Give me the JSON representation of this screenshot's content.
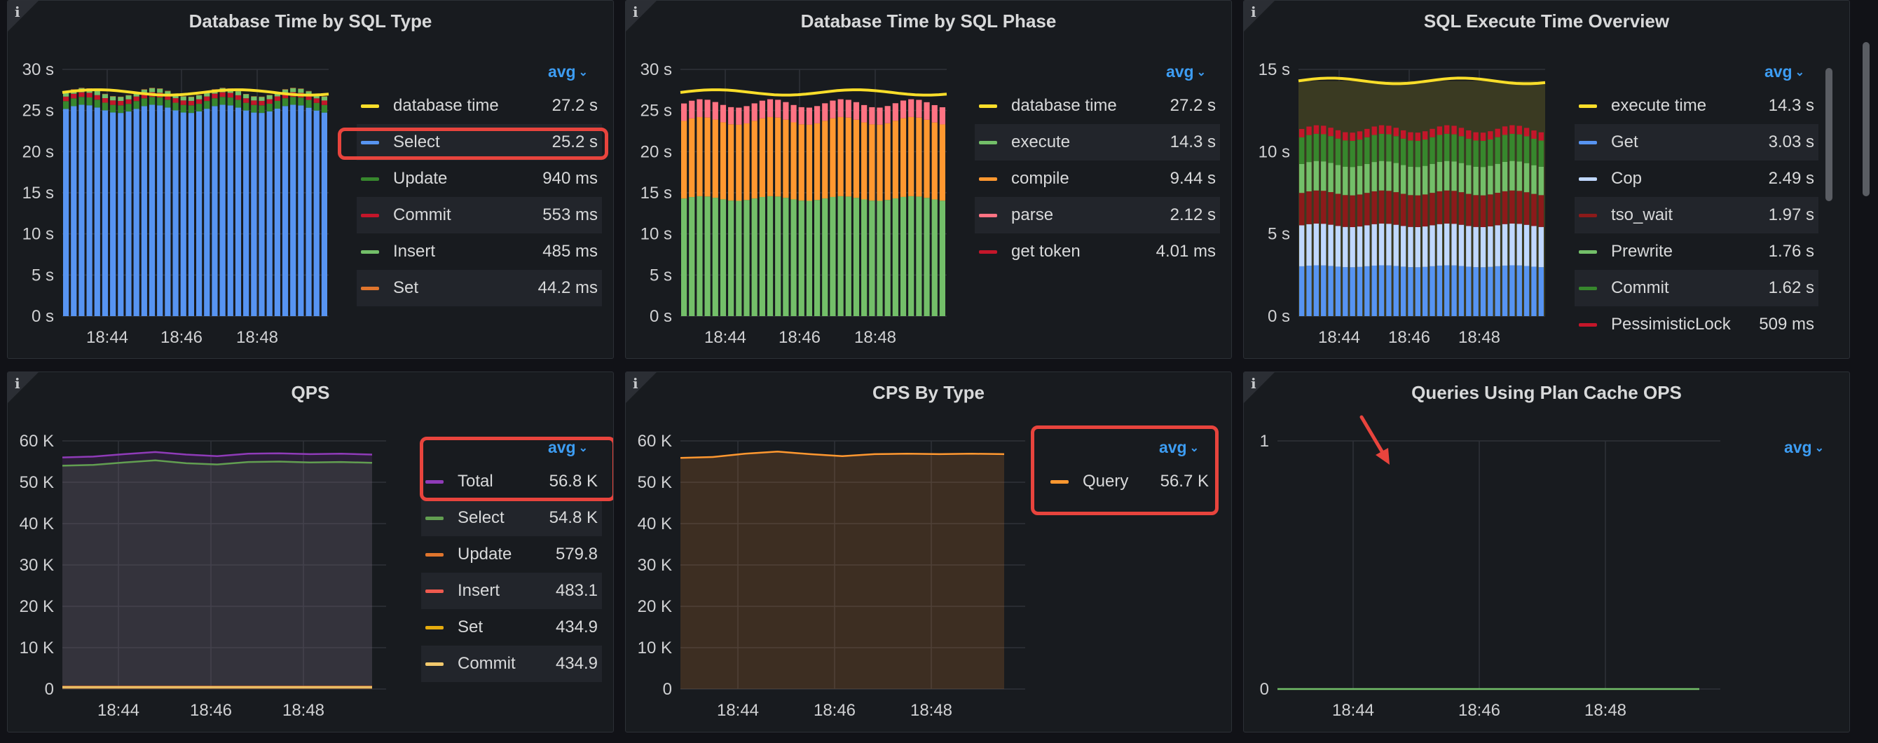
{
  "panels": {
    "p1": {
      "title": "Database Time by SQL Type",
      "avg_label": "avg",
      "legend": [
        {
          "name": "database time",
          "value": "27.2 s",
          "color": "#fade2a"
        },
        {
          "name": "Select",
          "value": "25.2 s",
          "color": "#5794f2"
        },
        {
          "name": "Update",
          "value": "940 ms",
          "color": "#37872d"
        },
        {
          "name": "Commit",
          "value": "553 ms",
          "color": "#c4162a"
        },
        {
          "name": "Insert",
          "value": "485 ms",
          "color": "#73bf69"
        },
        {
          "name": "Set",
          "value": "44.2 ms",
          "color": "#e0752d"
        }
      ]
    },
    "p2": {
      "title": "Database Time by SQL Phase",
      "avg_label": "avg",
      "legend": [
        {
          "name": "database time",
          "value": "27.2 s",
          "color": "#fade2a"
        },
        {
          "name": "execute",
          "value": "14.3 s",
          "color": "#73bf69"
        },
        {
          "name": "compile",
          "value": "9.44 s",
          "color": "#ff9830"
        },
        {
          "name": "parse",
          "value": "2.12 s",
          "color": "#ff7383"
        },
        {
          "name": "get token",
          "value": "4.01 ms",
          "color": "#c4162a"
        }
      ]
    },
    "p3": {
      "title": "SQL Execute Time Overview",
      "avg_label": "avg",
      "legend": [
        {
          "name": "execute time",
          "value": "14.3 s",
          "color": "#fade2a"
        },
        {
          "name": "Get",
          "value": "3.03 s",
          "color": "#5794f2"
        },
        {
          "name": "Cop",
          "value": "2.49 s",
          "color": "#c0d8ff"
        },
        {
          "name": "tso_wait",
          "value": "1.97 s",
          "color": "#8c1a1a"
        },
        {
          "name": "Prewrite",
          "value": "1.76 s",
          "color": "#73bf69"
        },
        {
          "name": "Commit",
          "value": "1.62 s",
          "color": "#37872d"
        },
        {
          "name": "PessimisticLock",
          "value": "509 ms",
          "color": "#c4162a"
        }
      ]
    },
    "p4": {
      "title": "QPS",
      "avg_label": "avg",
      "legend": [
        {
          "name": "Total",
          "value": "56.8 K",
          "color": "#8f3bb8"
        },
        {
          "name": "Select",
          "value": "54.8 K",
          "color": "#629e51"
        },
        {
          "name": "Update",
          "value": "579.8",
          "color": "#e0752d"
        },
        {
          "name": "Insert",
          "value": "483.1",
          "color": "#ef5a4f"
        },
        {
          "name": "Set",
          "value": "434.9",
          "color": "#e5ac0e"
        },
        {
          "name": "Commit",
          "value": "434.9",
          "color": "#f2c96d"
        }
      ]
    },
    "p5": {
      "title": "CPS By Type",
      "avg_label": "avg",
      "legend": [
        {
          "name": "Query",
          "value": "56.7 K",
          "color": "#ff9830"
        }
      ]
    },
    "p6": {
      "title": "Queries Using Plan Cache OPS",
      "avg_label": "avg",
      "legend": []
    }
  },
  "chart_data": [
    {
      "type": "bar",
      "title": "Database Time by SQL Type",
      "stacked": true,
      "x_ticks": [
        "18:44",
        "18:46",
        "18:48"
      ],
      "y_ticks": [
        "0 s",
        "5 s",
        "10 s",
        "15 s",
        "20 s",
        "25 s",
        "30 s"
      ],
      "ylim": [
        0,
        30
      ],
      "series": [
        {
          "name": "Select",
          "avg": 25.2
        },
        {
          "name": "Update",
          "avg": 0.94
        },
        {
          "name": "Commit",
          "avg": 0.553
        },
        {
          "name": "Insert",
          "avg": 0.485
        },
        {
          "name": "Set",
          "avg": 0.0442
        },
        {
          "name": "database time",
          "avg": 27.2,
          "style": "line"
        }
      ]
    },
    {
      "type": "bar",
      "title": "Database Time by SQL Phase",
      "stacked": true,
      "x_ticks": [
        "18:44",
        "18:46",
        "18:48"
      ],
      "y_ticks": [
        "0 s",
        "5 s",
        "10 s",
        "15 s",
        "20 s",
        "25 s",
        "30 s"
      ],
      "ylim": [
        0,
        30
      ],
      "series": [
        {
          "name": "execute",
          "avg": 14.3
        },
        {
          "name": "compile",
          "avg": 9.44
        },
        {
          "name": "parse",
          "avg": 2.12
        },
        {
          "name": "get token",
          "avg": 0.00401
        },
        {
          "name": "database time",
          "avg": 27.2,
          "style": "line"
        }
      ]
    },
    {
      "type": "bar",
      "title": "SQL Execute Time Overview",
      "stacked": true,
      "x_ticks": [
        "18:44",
        "18:46",
        "18:48"
      ],
      "y_ticks": [
        "0 s",
        "5 s",
        "10 s",
        "15 s"
      ],
      "ylim": [
        0,
        15
      ],
      "series": [
        {
          "name": "Get",
          "avg": 3.03
        },
        {
          "name": "Cop",
          "avg": 2.49
        },
        {
          "name": "tso_wait",
          "avg": 1.97
        },
        {
          "name": "Prewrite",
          "avg": 1.76
        },
        {
          "name": "Commit",
          "avg": 1.62
        },
        {
          "name": "PessimisticLock",
          "avg": 0.509
        },
        {
          "name": "execute time",
          "avg": 14.3,
          "style": "line"
        }
      ]
    },
    {
      "type": "line",
      "title": "QPS",
      "x_ticks": [
        "18:44",
        "18:46",
        "18:48"
      ],
      "y_ticks": [
        "0",
        "10 K",
        "20 K",
        "30 K",
        "40 K",
        "50 K",
        "60 K"
      ],
      "ylim": [
        0,
        60000
      ],
      "series": [
        {
          "name": "Total",
          "values": [
            56000,
            56200,
            56800,
            57300,
            56700,
            56300,
            56900,
            57000,
            56800,
            56900,
            56700
          ]
        },
        {
          "name": "Select",
          "values": [
            54000,
            54200,
            54800,
            55300,
            54600,
            54300,
            54900,
            55000,
            54800,
            54900,
            54700
          ]
        },
        {
          "name": "Update",
          "avg": 579.8
        },
        {
          "name": "Insert",
          "avg": 483.1
        },
        {
          "name": "Set",
          "avg": 434.9
        },
        {
          "name": "Commit",
          "avg": 434.9
        }
      ]
    },
    {
      "type": "area",
      "title": "CPS By Type",
      "x_ticks": [
        "18:44",
        "18:46",
        "18:48"
      ],
      "y_ticks": [
        "0",
        "10 K",
        "20 K",
        "30 K",
        "40 K",
        "50 K",
        "60 K"
      ],
      "ylim": [
        0,
        60000
      ],
      "series": [
        {
          "name": "Query",
          "values": [
            55900,
            56100,
            56900,
            57400,
            56800,
            56300,
            56800,
            56900,
            56800,
            56900,
            56800
          ]
        }
      ]
    },
    {
      "type": "line",
      "title": "Queries Using Plan Cache OPS",
      "x_ticks": [
        "18:44",
        "18:46",
        "18:48"
      ],
      "y_ticks": [
        "0",
        "1"
      ],
      "ylim": [
        0,
        1
      ],
      "series": [
        {
          "values": [
            0,
            0,
            0,
            0,
            0,
            0,
            0,
            0,
            0,
            0,
            0
          ]
        }
      ]
    }
  ]
}
